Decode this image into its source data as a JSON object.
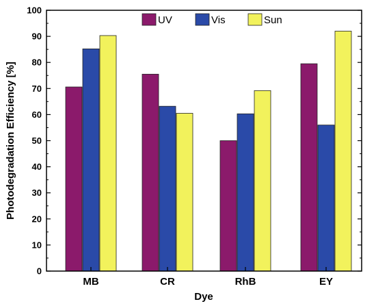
{
  "chart_data": {
    "type": "bar",
    "categories": [
      "MB",
      "CR",
      "RhB",
      "EY"
    ],
    "series": [
      {
        "name": "UV",
        "values": [
          70.6,
          75.5,
          50.0,
          79.5
        ],
        "color": "#8b1a6b"
      },
      {
        "name": "Vis",
        "values": [
          85.2,
          63.2,
          60.3,
          56.0
        ],
        "color": "#2a4aa8"
      },
      {
        "name": "Sun",
        "values": [
          90.3,
          60.5,
          69.2,
          92.0
        ],
        "color": "#f2f25c"
      }
    ],
    "title": "",
    "xlabel": "Dye",
    "ylabel": "Photodegradation Efficiency [%]",
    "ylim": [
      0,
      100
    ],
    "yticks": [
      0,
      10,
      20,
      30,
      40,
      50,
      60,
      70,
      80,
      90,
      100
    ],
    "grid": false,
    "legend_position": "top-center"
  }
}
